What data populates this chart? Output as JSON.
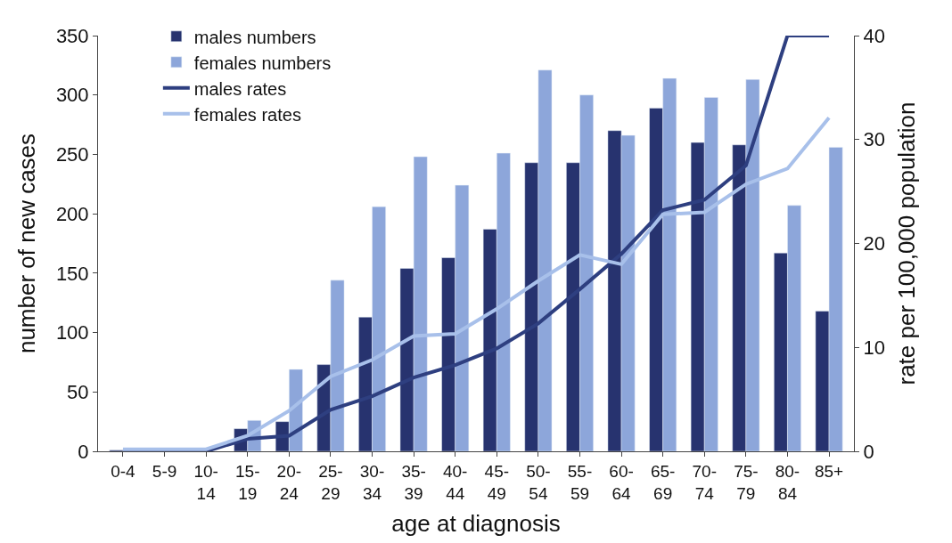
{
  "chart_data": {
    "type": "bar",
    "xlabel": "age at diagnosis",
    "ylabel": "number of new cases",
    "y2label": "rate per 100,000 population",
    "categories": [
      "0-4",
      "5-9",
      "10-\n14",
      "15-\n19",
      "20-\n24",
      "25-\n29",
      "30-\n34",
      "35-\n39",
      "40-\n44",
      "45-\n49",
      "50-\n54",
      "55-\n59",
      "60-\n64",
      "65-\n69",
      "70-\n74",
      "75-\n79",
      "80-\n84",
      "85+"
    ],
    "series": [
      {
        "name": "males numbers",
        "color": "#27336f",
        "values": [
          1,
          null,
          null,
          19,
          25,
          73,
          113,
          154,
          163,
          187,
          243,
          243,
          270,
          289,
          260,
          258,
          167,
          118
        ]
      },
      {
        "name": "females numbers",
        "color": "#8da6da",
        "values": [
          null,
          null,
          null,
          26,
          69,
          144,
          206,
          248,
          224,
          251,
          321,
          300,
          266,
          314,
          298,
          313,
          207,
          256
        ]
      },
      {
        "name": "males rates",
        "type": "line",
        "axis": "y2",
        "color": "#2e3f80",
        "values": [
          0.1,
          0,
          0,
          1.2,
          1.5,
          4,
          5.3,
          7.1,
          8.3,
          9.9,
          12.3,
          15.6,
          19,
          23.2,
          24.2,
          27.5,
          40,
          40
        ]
      },
      {
        "name": "females rates",
        "type": "line",
        "axis": "y2",
        "color": "#a8c0ea",
        "values": [
          0.2,
          0.2,
          0.2,
          1.5,
          3.9,
          7.2,
          8.8,
          11.1,
          11.3,
          13.7,
          16.4,
          18.9,
          18,
          22.8,
          23,
          25.7,
          27.2,
          32.1
        ]
      }
    ],
    "ylim": [
      0,
      350
    ],
    "yticks": [
      0,
      50,
      100,
      150,
      200,
      250,
      300,
      350
    ],
    "y2lim": [
      0,
      40
    ],
    "y2ticks": [
      0,
      10,
      20,
      30,
      40
    ],
    "legend": "top left",
    "marker": "none",
    "line_style": "solid"
  }
}
